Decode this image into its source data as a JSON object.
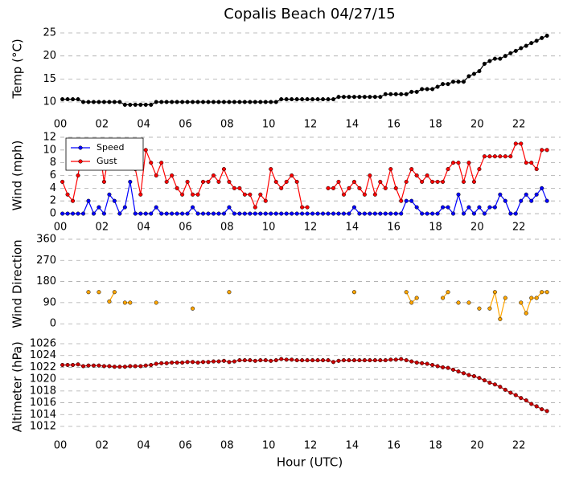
{
  "chart_data": {
    "type": "multi-panel",
    "title": "Copalis Beach 04/27/15",
    "xlabel": "Hour (UTC)",
    "xlim": [
      0,
      24
    ],
    "x": [
      0.1,
      0.35,
      0.6,
      0.85,
      1.1,
      1.35,
      1.6,
      1.85,
      2.1,
      2.35,
      2.6,
      2.85,
      3.1,
      3.35,
      3.6,
      3.85,
      4.1,
      4.35,
      4.6,
      4.85,
      5.1,
      5.35,
      5.6,
      5.85,
      6.1,
      6.35,
      6.6,
      6.85,
      7.1,
      7.35,
      7.6,
      7.85,
      8.1,
      8.35,
      8.6,
      8.85,
      9.1,
      9.35,
      9.6,
      9.85,
      10.1,
      10.35,
      10.6,
      10.85,
      11.1,
      11.35,
      11.6,
      11.85,
      12.1,
      12.35,
      12.6,
      12.85,
      13.1,
      13.35,
      13.6,
      13.85,
      14.1,
      14.35,
      14.6,
      14.85,
      15.1,
      15.35,
      15.6,
      15.85,
      16.1,
      16.35,
      16.6,
      16.85,
      17.1,
      17.35,
      17.6,
      17.85,
      18.1,
      18.35,
      18.6,
      18.85,
      19.1,
      19.35,
      19.6,
      19.85,
      20.1,
      20.35,
      20.6,
      20.85,
      21.1,
      21.35,
      21.6,
      21.85,
      22.1,
      22.35,
      22.6,
      22.85,
      23.1,
      23.35
    ],
    "panels": [
      {
        "type": "line",
        "ylabel": "Temp (°C)",
        "ylim": [
          8.5,
          26
        ],
        "yticks": [
          10,
          15,
          20,
          25
        ],
        "grid": true,
        "xticks": [
          {
            "value": 0,
            "label": "00"
          },
          {
            "value": 2,
            "label": "02"
          },
          {
            "value": 4,
            "label": "04"
          },
          {
            "value": 6,
            "label": "06"
          },
          {
            "value": 8,
            "label": "08"
          },
          {
            "value": 10,
            "label": "10"
          },
          {
            "value": 12,
            "label": "12"
          },
          {
            "value": 14,
            "label": "14"
          },
          {
            "value": 16,
            "label": "16"
          },
          {
            "value": 18,
            "label": "18"
          },
          {
            "value": 20,
            "label": "20"
          },
          {
            "value": 22,
            "label": "22"
          }
        ],
        "series": [
          {
            "color": "#000000",
            "values": [
              10.6,
              10.6,
              10.6,
              10.6,
              10,
              10,
              10,
              10,
              10,
              10,
              10,
              10,
              9.4,
              9.4,
              9.4,
              9.4,
              9.4,
              9.4,
              10,
              10,
              10,
              10,
              10,
              10,
              10,
              10,
              10,
              10,
              10,
              10,
              10,
              10,
              10,
              10,
              10,
              10,
              10,
              10,
              10,
              10,
              10,
              10,
              10.6,
              10.6,
              10.6,
              10.6,
              10.6,
              10.6,
              10.6,
              10.6,
              10.6,
              10.6,
              10.6,
              11.1,
              11.1,
              11.1,
              11.1,
              11.1,
              11.1,
              11.1,
              11.1,
              11.1,
              11.7,
              11.7,
              11.7,
              11.7,
              11.7,
              12.2,
              12.2,
              12.8,
              12.8,
              12.8,
              13.3,
              13.9,
              13.9,
              14.4,
              14.4,
              14.4,
              15.6,
              16.1,
              16.7,
              18.3,
              18.9,
              19.4,
              19.4,
              20,
              20.6,
              21.1,
              21.7,
              22.2,
              22.8,
              23.3,
              23.9,
              24.4
            ]
          }
        ]
      },
      {
        "type": "line",
        "ylabel": "Wind (mph)",
        "ylim": [
          -0.5,
          12.5
        ],
        "yticks": [
          0,
          2,
          4,
          6,
          8,
          10,
          12
        ],
        "grid": true,
        "legend": "upper left",
        "xticks": [
          {
            "value": 0,
            "label": "00"
          },
          {
            "value": 2,
            "label": "02"
          },
          {
            "value": 4,
            "label": "04"
          },
          {
            "value": 6,
            "label": "06"
          },
          {
            "value": 8,
            "label": "08"
          },
          {
            "value": 10,
            "label": "10"
          },
          {
            "value": 12,
            "label": "12"
          },
          {
            "value": 14,
            "label": "14"
          },
          {
            "value": 16,
            "label": "16"
          },
          {
            "value": 18,
            "label": "18"
          },
          {
            "value": 20,
            "label": "20"
          },
          {
            "value": 22,
            "label": "22"
          }
        ],
        "series": [
          {
            "name": "Speed",
            "color": "#0000ff",
            "values": [
              0,
              0,
              0,
              0,
              0,
              2,
              0,
              1,
              0,
              3,
              2,
              0,
              1,
              5,
              0,
              0,
              0,
              0,
              1,
              0,
              0,
              0,
              0,
              0,
              0,
              1,
              0,
              0,
              0,
              0,
              0,
              0,
              1,
              0,
              0,
              0,
              0,
              0,
              0,
              0,
              0,
              0,
              0,
              0,
              0,
              0,
              0,
              0,
              0,
              0,
              0,
              0,
              0,
              0,
              0,
              0,
              1,
              0,
              0,
              0,
              0,
              0,
              0,
              0,
              0,
              0,
              2,
              2,
              1,
              0,
              0,
              0,
              0,
              1,
              1,
              0,
              3,
              0,
              1,
              0,
              1,
              0,
              1,
              1,
              3,
              2,
              0,
              0,
              2,
              3,
              2,
              3,
              4,
              2
            ]
          },
          {
            "name": "Gust",
            "color": "#ff0000",
            "values": [
              5,
              3,
              2,
              6,
              11,
              10,
              10,
              11,
              5,
              10,
              10,
              11,
              11,
              8,
              7,
              3,
              10,
              8,
              6,
              8,
              5,
              6,
              4,
              3,
              5,
              3,
              3,
              5,
              5,
              6,
              5,
              7,
              5,
              4,
              4,
              3,
              3,
              1,
              3,
              2,
              7,
              5,
              4,
              5,
              6,
              5,
              1,
              1,
              null,
              null,
              null,
              4,
              4,
              5,
              3,
              4,
              5,
              4,
              3,
              6,
              3,
              5,
              4,
              7,
              4,
              2,
              5,
              7,
              6,
              5,
              6,
              5,
              5,
              5,
              7,
              8,
              8,
              5,
              8,
              5,
              7,
              9,
              9,
              9,
              9,
              9,
              9,
              11,
              11,
              8,
              8,
              7,
              10,
              10
            ]
          }
        ]
      },
      {
        "type": "line",
        "ylabel": "Wind Direction",
        "ylim": [
          -30,
          370
        ],
        "yticks": [
          0,
          90,
          180,
          270,
          360
        ],
        "grid": true,
        "series": [
          {
            "color": "#ffa500",
            "values": [
              null,
              null,
              null,
              null,
              null,
              135,
              null,
              135,
              null,
              95,
              135,
              null,
              90,
              90,
              null,
              null,
              null,
              null,
              90,
              null,
              null,
              null,
              null,
              null,
              null,
              65,
              null,
              null,
              null,
              null,
              null,
              null,
              135,
              null,
              null,
              null,
              null,
              null,
              null,
              null,
              null,
              null,
              null,
              null,
              null,
              null,
              null,
              null,
              null,
              null,
              null,
              null,
              null,
              null,
              null,
              null,
              135,
              null,
              null,
              null,
              null,
              null,
              null,
              null,
              null,
              null,
              135,
              90,
              110,
              null,
              null,
              null,
              null,
              110,
              135,
              null,
              90,
              null,
              90,
              null,
              65,
              null,
              65,
              135,
              20,
              110,
              null,
              null,
              90,
              45,
              110,
              110,
              135,
              135
            ]
          }
        ]
      },
      {
        "type": "line",
        "ylabel": "Altimeter (hPa)",
        "ylim": [
          1010.8,
          1026.6
        ],
        "yticks": [
          1012,
          1014,
          1016,
          1018,
          1020,
          1022,
          1024,
          1026
        ],
        "grid": true,
        "xticks": [
          {
            "value": 0,
            "label": "00"
          },
          {
            "value": 2,
            "label": "02"
          },
          {
            "value": 4,
            "label": "04"
          },
          {
            "value": 6,
            "label": "06"
          },
          {
            "value": 8,
            "label": "08"
          },
          {
            "value": 10,
            "label": "10"
          },
          {
            "value": 12,
            "label": "12"
          },
          {
            "value": 14,
            "label": "14"
          },
          {
            "value": 16,
            "label": "16"
          },
          {
            "value": 18,
            "label": "18"
          },
          {
            "value": 20,
            "label": "20"
          },
          {
            "value": 22,
            "label": "22"
          }
        ],
        "series": [
          {
            "color": "#cc0000",
            "values": [
              1022.4,
              1022.4,
              1022.4,
              1022.5,
              1022.2,
              1022.3,
              1022.3,
              1022.3,
              1022.2,
              1022.2,
              1022.1,
              1022.1,
              1022.1,
              1022.2,
              1022.2,
              1022.2,
              1022.3,
              1022.4,
              1022.6,
              1022.7,
              1022.7,
              1022.8,
              1022.8,
              1022.8,
              1022.9,
              1022.9,
              1022.8,
              1022.9,
              1022.9,
              1023,
              1023,
              1023.1,
              1022.9,
              1023,
              1023.2,
              1023.2,
              1023.2,
              1023.1,
              1023.2,
              1023.2,
              1023.1,
              1023.2,
              1023.4,
              1023.3,
              1023.3,
              1023.2,
              1023.2,
              1023.2,
              1023.2,
              1023.2,
              1023.2,
              1023.2,
              1022.9,
              1023.1,
              1023.2,
              1023.2,
              1023.2,
              1023.2,
              1023.2,
              1023.2,
              1023.2,
              1023.2,
              1023.2,
              1023.3,
              1023.3,
              1023.4,
              1023.2,
              1023,
              1022.8,
              1022.7,
              1022.6,
              1022.4,
              1022.2,
              1022,
              1021.9,
              1021.6,
              1021.3,
              1021,
              1020.7,
              1020.5,
              1020.2,
              1019.8,
              1019.4,
              1019.1,
              1018.7,
              1018.2,
              1017.7,
              1017.3,
              1016.8,
              1016.4,
              1015.8,
              1015.4,
              1014.9,
              1014.6
            ]
          }
        ]
      }
    ]
  }
}
